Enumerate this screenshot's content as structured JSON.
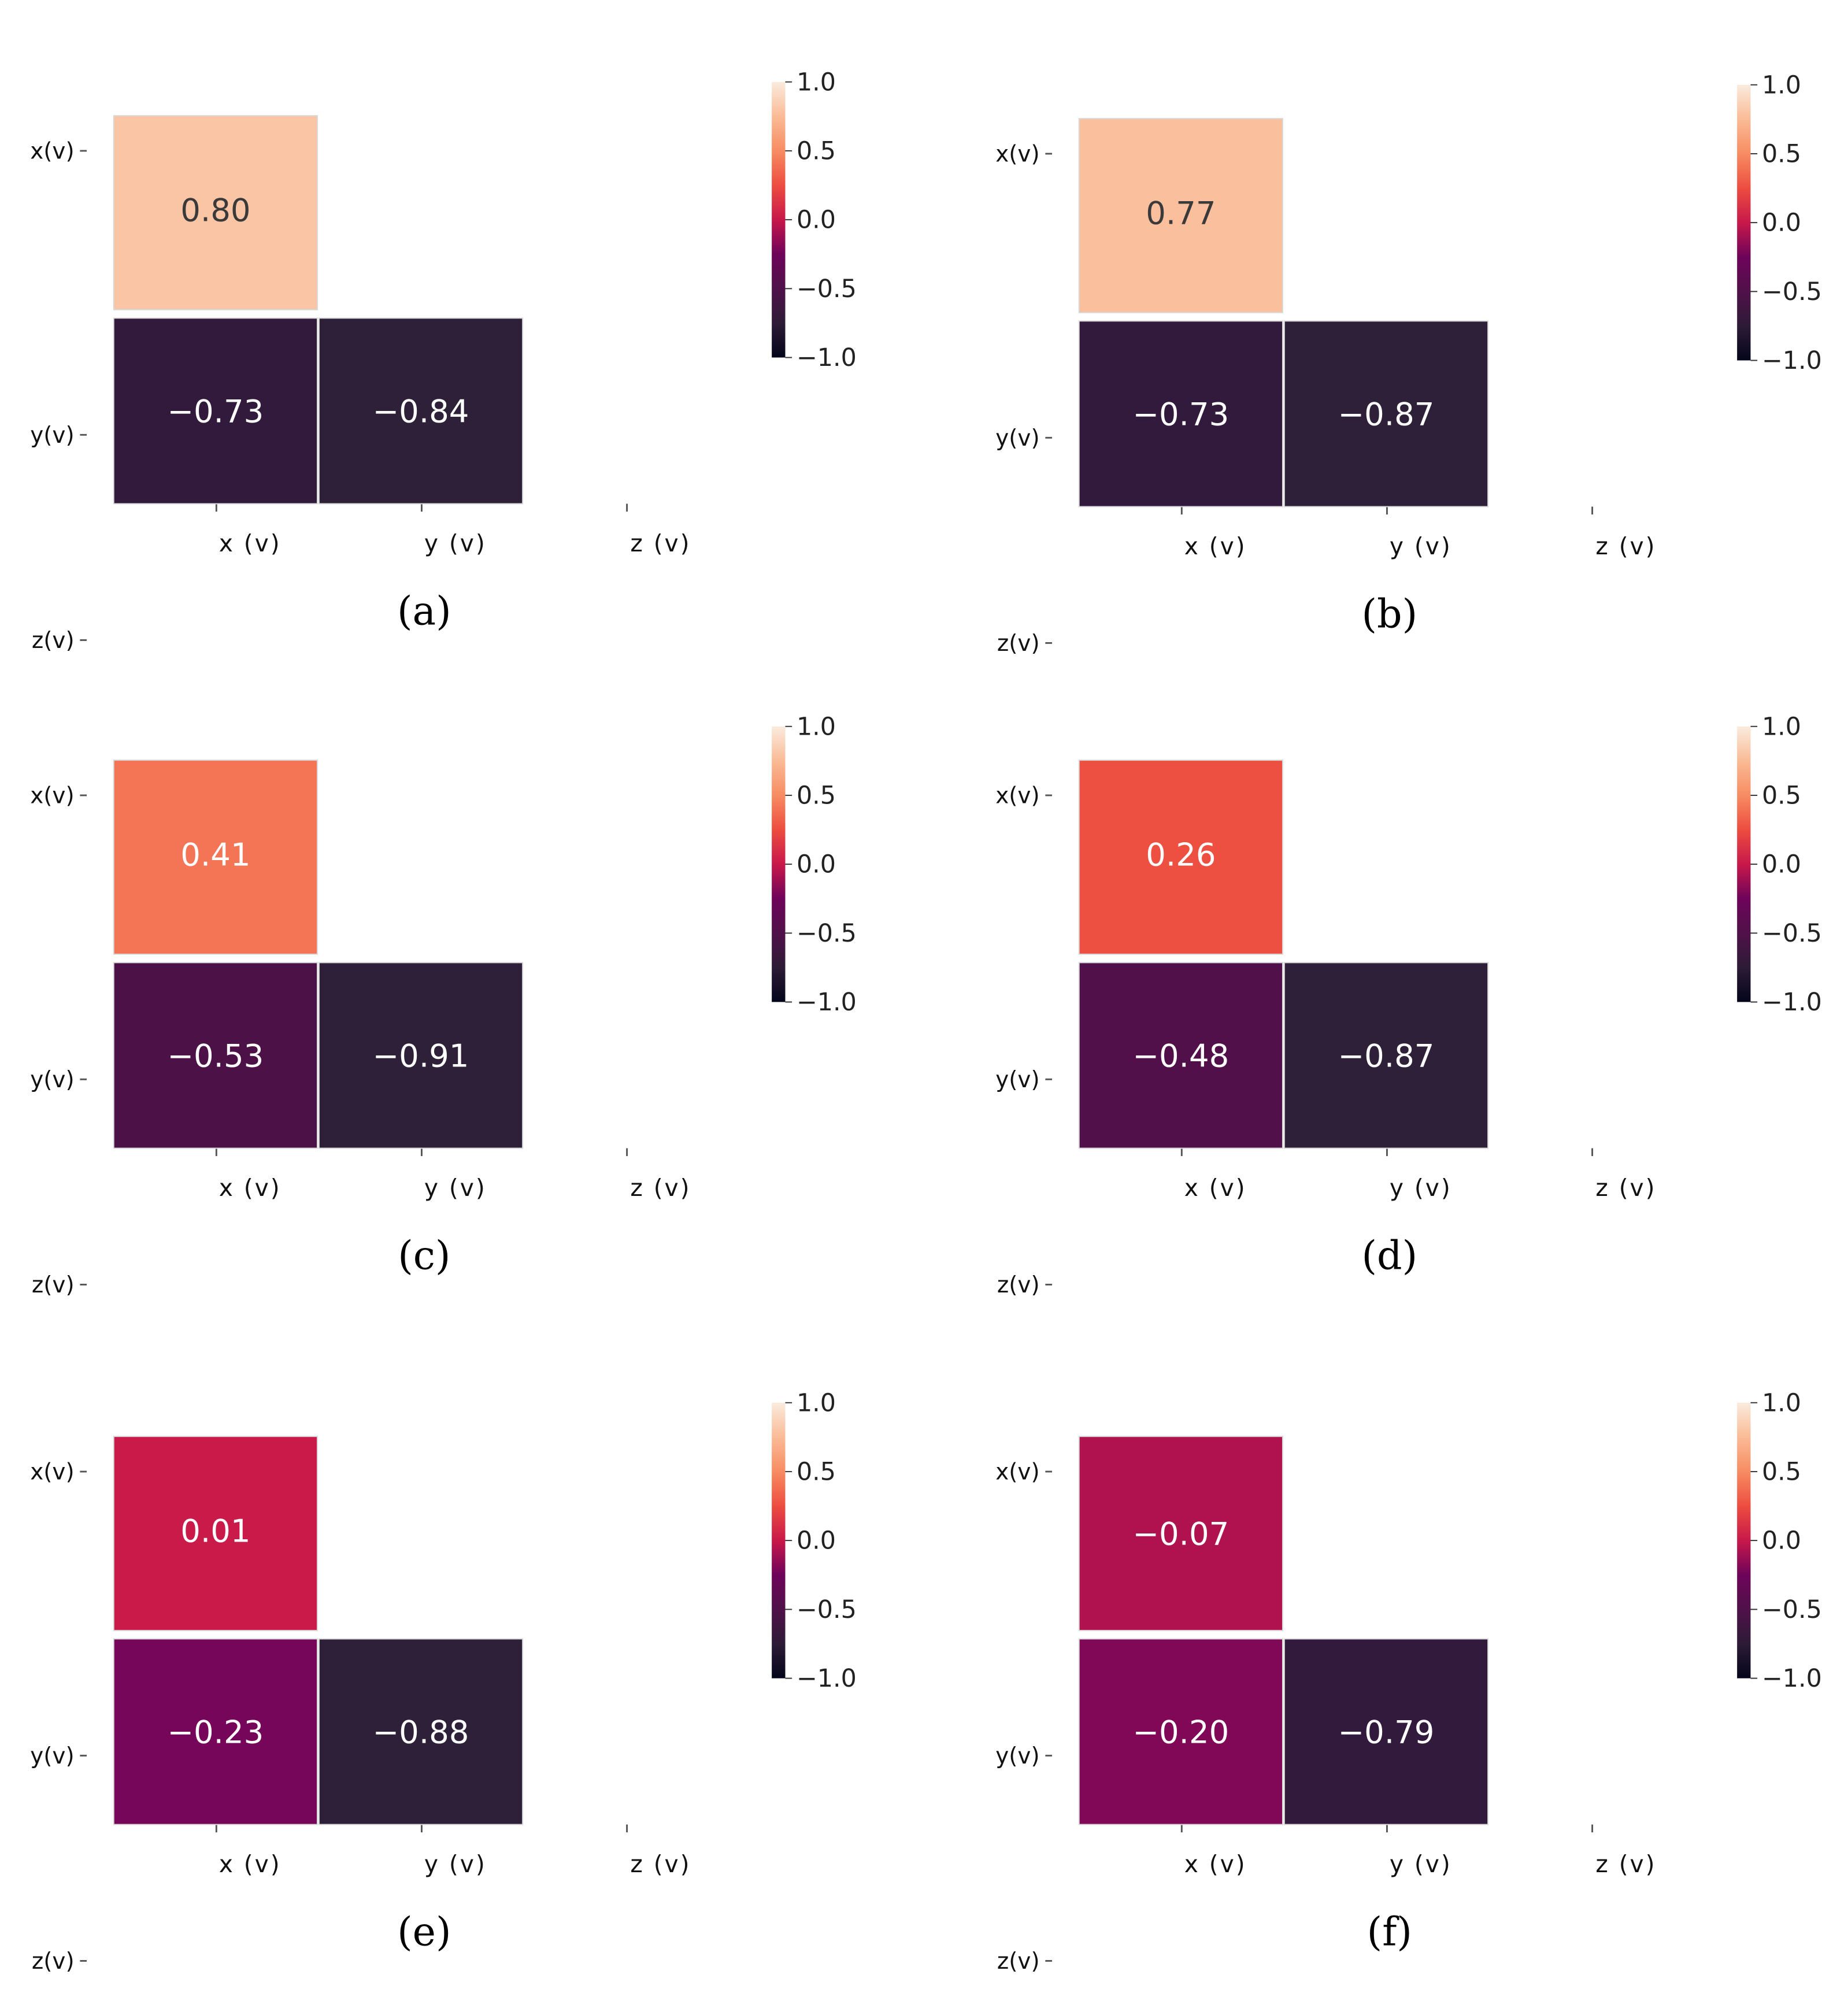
{
  "chart_data": [
    {
      "type": "heatmap",
      "caption": "(a)",
      "x_labels": [
        "x (v)",
        "y (v)",
        "z (v)"
      ],
      "y_labels": [
        "x(v)",
        "y(v)",
        "z(v)"
      ],
      "cells": [
        {
          "row": 1,
          "col": 0,
          "value": 0.8,
          "label": "0.80"
        },
        {
          "row": 2,
          "col": 0,
          "value": -0.73,
          "label": "−0.73"
        },
        {
          "row": 2,
          "col": 1,
          "value": -0.84,
          "label": "−0.84"
        }
      ],
      "colorbar": {
        "range": [
          -1.0,
          1.0
        ],
        "ticks": [
          1.0,
          0.5,
          0.0,
          -0.5,
          -1.0
        ],
        "tick_labels": [
          "1.0",
          "0.5",
          "0.0",
          "−0.5",
          "−1.0"
        ]
      }
    },
    {
      "type": "heatmap",
      "caption": "(b)",
      "x_labels": [
        "x (v)",
        "y (v)",
        "z (v)"
      ],
      "y_labels": [
        "x(v)",
        "y(v)",
        "z(v)"
      ],
      "cells": [
        {
          "row": 1,
          "col": 0,
          "value": 0.77,
          "label": "0.77"
        },
        {
          "row": 2,
          "col": 0,
          "value": -0.73,
          "label": "−0.73"
        },
        {
          "row": 2,
          "col": 1,
          "value": -0.87,
          "label": "−0.87"
        }
      ],
      "colorbar": {
        "range": [
          -1.0,
          1.0
        ],
        "ticks": [
          1.0,
          0.5,
          0.0,
          -0.5,
          -1.0
        ],
        "tick_labels": [
          "1.0",
          "0.5",
          "0.0",
          "−0.5",
          "−1.0"
        ]
      }
    },
    {
      "type": "heatmap",
      "caption": "(c)",
      "x_labels": [
        "x (v)",
        "y (v)",
        "z (v)"
      ],
      "y_labels": [
        "x(v)",
        "y(v)",
        "z(v)"
      ],
      "cells": [
        {
          "row": 1,
          "col": 0,
          "value": 0.41,
          "label": "0.41"
        },
        {
          "row": 2,
          "col": 0,
          "value": -0.53,
          "label": "−0.53"
        },
        {
          "row": 2,
          "col": 1,
          "value": -0.91,
          "label": "−0.91"
        }
      ],
      "colorbar": {
        "range": [
          -1.0,
          1.0
        ],
        "ticks": [
          1.0,
          0.5,
          0.0,
          -0.5,
          -1.0
        ],
        "tick_labels": [
          "1.0",
          "0.5",
          "0.0",
          "−0.5",
          "−1.0"
        ]
      }
    },
    {
      "type": "heatmap",
      "caption": "(d)",
      "x_labels": [
        "x (v)",
        "y (v)",
        "z (v)"
      ],
      "y_labels": [
        "x(v)",
        "y(v)",
        "z(v)"
      ],
      "cells": [
        {
          "row": 1,
          "col": 0,
          "value": 0.26,
          "label": "0.26"
        },
        {
          "row": 2,
          "col": 0,
          "value": -0.48,
          "label": "−0.48"
        },
        {
          "row": 2,
          "col": 1,
          "value": -0.87,
          "label": "−0.87"
        }
      ],
      "colorbar": {
        "range": [
          -1.0,
          1.0
        ],
        "ticks": [
          1.0,
          0.5,
          0.0,
          -0.5,
          -1.0
        ],
        "tick_labels": [
          "1.0",
          "0.5",
          "0.0",
          "−0.5",
          "−1.0"
        ]
      }
    },
    {
      "type": "heatmap",
      "caption": "(e)",
      "x_labels": [
        "x (v)",
        "y (v)",
        "z (v)"
      ],
      "y_labels": [
        "x(v)",
        "y(v)",
        "z(v)"
      ],
      "cells": [
        {
          "row": 1,
          "col": 0,
          "value": 0.01,
          "label": "0.01"
        },
        {
          "row": 2,
          "col": 0,
          "value": -0.23,
          "label": "−0.23"
        },
        {
          "row": 2,
          "col": 1,
          "value": -0.88,
          "label": "−0.88"
        }
      ],
      "colorbar": {
        "range": [
          -1.0,
          1.0
        ],
        "ticks": [
          1.0,
          0.5,
          0.0,
          -0.5,
          -1.0
        ],
        "tick_labels": [
          "1.0",
          "0.5",
          "0.0",
          "−0.5",
          "−1.0"
        ]
      }
    },
    {
      "type": "heatmap",
      "caption": "(f)",
      "x_labels": [
        "x (v)",
        "y (v)",
        "z (v)"
      ],
      "y_labels": [
        "x(v)",
        "y(v)",
        "z(v)"
      ],
      "cells": [
        {
          "row": 1,
          "col": 0,
          "value": -0.07,
          "label": "−0.07"
        },
        {
          "row": 2,
          "col": 0,
          "value": -0.2,
          "label": "−0.20"
        },
        {
          "row": 2,
          "col": 1,
          "value": -0.79,
          "label": "−0.79"
        }
      ],
      "colorbar": {
        "range": [
          -1.0,
          1.0
        ],
        "ticks": [
          1.0,
          0.5,
          0.0,
          -0.5,
          -1.0
        ],
        "tick_labels": [
          "1.0",
          "0.5",
          "0.0",
          "−0.5",
          "−1.0"
        ]
      }
    }
  ]
}
